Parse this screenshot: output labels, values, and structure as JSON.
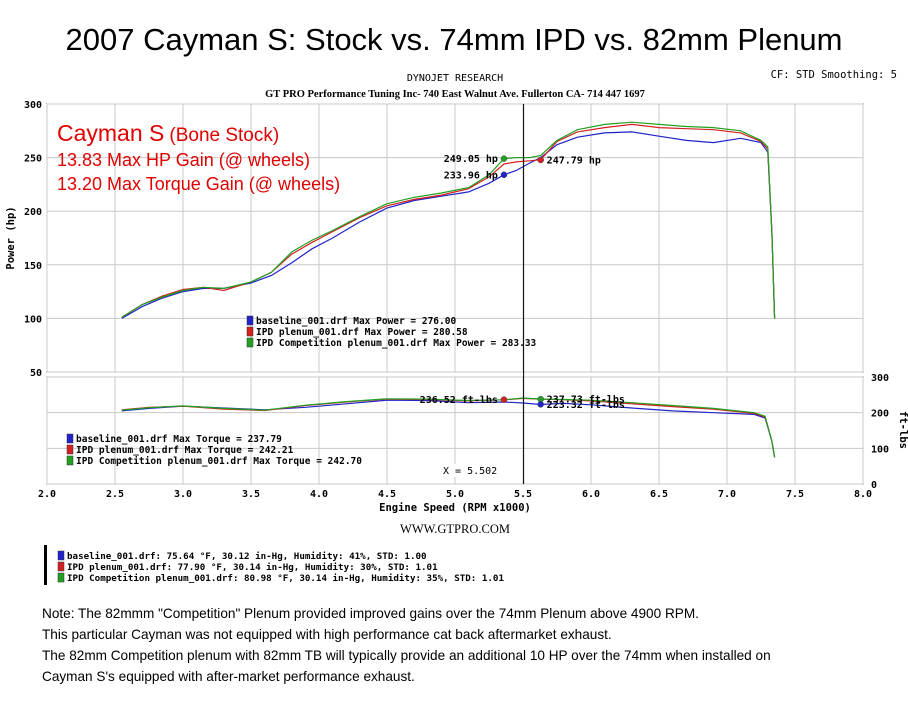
{
  "title": "2007 Cayman S: Stock vs. 74mm IPD vs. 82mm Plenum",
  "header": {
    "dyno": "DYNOJET RESEARCH",
    "shop": "GT PRO Performance Tuning Inc- 740 East Walnut Ave. Fullerton CA- 714 447 1697",
    "settings": "CF: STD  Smoothing: 5"
  },
  "annotations": {
    "line1_main": "Cayman S",
    "line1_sub": "(Bone Stock)",
    "line2": "13.83 Max HP Gain (@ wheels)",
    "line3": "13.20 Max Torque Gain (@ wheels)"
  },
  "colors": {
    "baseline": "#2222cc",
    "ipd": "#d42020",
    "competition": "#22a022",
    "annotation": "#e00000"
  },
  "power_legend": [
    "baseline_001.drf Max Power = 276.00",
    "IPD plenum_001.drf Max Power = 280.58",
    "IPD Competition plenum_001.drf Max Power = 283.33"
  ],
  "torque_legend": [
    "baseline_001.drf Max Torque = 237.79",
    "IPD plenum_001.drf Max Torque = 242.21",
    "IPD Competition plenum_001.drf Max Torque = 242.70"
  ],
  "cursor_label": "X = 5.502",
  "power_markers": [
    {
      "label": "249.05 hp",
      "x": 5.36,
      "y": 249.05,
      "series": "competition"
    },
    {
      "label": "233.96 hp",
      "x": 5.36,
      "y": 233.96,
      "series": "baseline"
    },
    {
      "label": "247.79 hp",
      "x": 5.63,
      "y": 247.79,
      "series": "ipd"
    }
  ],
  "torque_markers": [
    {
      "label": "236.52 ft-lbs",
      "x": 5.36,
      "y": 236.52,
      "series": "ipd"
    },
    {
      "label": "237.73 ft-lbs",
      "x": 5.63,
      "y": 237.73,
      "series": "competition"
    },
    {
      "label": "223.32 ft-lbs",
      "x": 5.63,
      "y": 223.32,
      "series": "baseline"
    }
  ],
  "website": "WWW.GTPRO.COM",
  "conditions": [
    "baseline_001.drf: 75.64 °F, 30.12 in-Hg, Humidity: 41%, STD: 1.00",
    "IPD plenum_001.drf: 77.90 °F, 30.14 in-Hg, Humidity: 30%, STD: 1.01",
    "IPD Competition plenum_001.drf: 80.98 °F, 30.14 in-Hg, Humidity: 35%, STD: 1.01"
  ],
  "notes": [
    "Note: The 82mmm \"Competition\" Plenum provided improved gains over the 74mm Plenum above 4900 RPM.",
    "This particular Cayman was not equipped with high performance cat back aftermarket exhaust.",
    "The 82mm Competition plenum with 82mm TB will typically provide an additional 10 HP over the 74mm when installed on",
    "Cayman S's equipped with after-market performance exhaust."
  ],
  "chart_data": [
    {
      "type": "line",
      "ylabel": "Power (hp)",
      "ylim": [
        50,
        300
      ],
      "xlim": [
        2.0,
        8.0
      ],
      "yticks": [
        "50",
        "100",
        "150",
        "200",
        "250",
        "300"
      ],
      "grid": true,
      "series": [
        {
          "name": "baseline_001.drf",
          "color_key": "baseline",
          "x": [
            2.55,
            2.7,
            2.85,
            3.0,
            3.15,
            3.3,
            3.5,
            3.65,
            3.8,
            3.95,
            4.1,
            4.3,
            4.5,
            4.7,
            4.9,
            5.1,
            5.25,
            5.36,
            5.45,
            5.55,
            5.63,
            5.75,
            5.9,
            6.1,
            6.3,
            6.5,
            6.7,
            6.9,
            7.1,
            7.25,
            7.3,
            7.33,
            7.35
          ],
          "y": [
            100,
            111,
            119,
            125,
            128,
            128,
            133,
            140,
            152,
            165,
            175,
            190,
            203,
            210,
            214,
            218,
            226,
            234,
            238,
            245,
            250,
            262,
            269,
            273,
            274,
            270,
            266,
            264,
            268,
            264,
            255,
            180,
            100
          ]
        },
        {
          "name": "IPD plenum_001.drf",
          "color_key": "ipd",
          "x": [
            2.55,
            2.7,
            2.85,
            3.0,
            3.15,
            3.3,
            3.5,
            3.65,
            3.8,
            3.95,
            4.1,
            4.3,
            4.5,
            4.7,
            4.9,
            5.1,
            5.25,
            5.36,
            5.45,
            5.55,
            5.63,
            5.75,
            5.9,
            6.1,
            6.3,
            6.5,
            6.7,
            6.9,
            7.1,
            7.25,
            7.3,
            7.33,
            7.35
          ],
          "y": [
            101,
            113,
            121,
            127,
            129,
            126,
            134,
            143,
            160,
            171,
            181,
            194,
            205,
            211,
            215,
            221,
            232,
            244,
            246,
            247,
            248,
            265,
            274,
            278,
            281,
            278,
            277,
            276,
            273,
            265,
            258,
            180,
            100
          ]
        },
        {
          "name": "IPD Competition plenum_001.drf",
          "color_key": "competition",
          "x": [
            2.55,
            2.7,
            2.85,
            3.0,
            3.15,
            3.3,
            3.5,
            3.65,
            3.8,
            3.95,
            4.1,
            4.3,
            4.5,
            4.7,
            4.9,
            5.1,
            5.25,
            5.36,
            5.45,
            5.55,
            5.63,
            5.75,
            5.9,
            6.1,
            6.3,
            6.5,
            6.7,
            6.9,
            7.1,
            7.25,
            7.3,
            7.33,
            7.35
          ],
          "y": [
            101,
            113,
            120,
            126,
            129,
            128,
            134,
            143,
            162,
            173,
            182,
            195,
            207,
            213,
            217,
            222,
            234,
            249,
            250,
            250,
            252,
            266,
            276,
            281,
            283,
            281,
            279,
            278,
            275,
            266,
            260,
            180,
            100
          ]
        }
      ]
    },
    {
      "type": "line",
      "xlabel": "Engine Speed (RPM x1000)",
      "ylabel": "ft-lbs",
      "ylim": [
        0,
        300
      ],
      "xlim": [
        2.0,
        8.0
      ],
      "xticks": [
        "2.0",
        "2.5",
        "3.0",
        "3.5",
        "4.0",
        "4.5",
        "5.0",
        "5.5",
        "6.0",
        "6.5",
        "7.0",
        "7.5",
        "8.0"
      ],
      "yticks": [
        "0",
        "100",
        "200",
        "300"
      ],
      "grid": true,
      "series": [
        {
          "name": "baseline_001.drf",
          "color_key": "baseline",
          "x": [
            2.55,
            2.75,
            3.0,
            3.3,
            3.6,
            3.9,
            4.2,
            4.5,
            4.8,
            5.1,
            5.36,
            5.5,
            5.63,
            5.8,
            6.0,
            6.3,
            6.6,
            6.9,
            7.2,
            7.28,
            7.33,
            7.35
          ],
          "y": [
            205,
            212,
            218,
            213,
            208,
            215,
            225,
            235,
            234,
            228,
            230,
            227,
            223,
            226,
            222,
            213,
            205,
            200,
            195,
            185,
            120,
            75
          ]
        },
        {
          "name": "IPD plenum_001.drf",
          "color_key": "ipd",
          "x": [
            2.55,
            2.75,
            3.0,
            3.3,
            3.6,
            3.9,
            4.2,
            4.5,
            4.8,
            5.1,
            5.36,
            5.5,
            5.63,
            5.8,
            6.0,
            6.3,
            6.6,
            6.9,
            7.2,
            7.28,
            7.33,
            7.35
          ],
          "y": [
            208,
            215,
            218,
            210,
            206,
            220,
            230,
            238,
            237,
            233,
            236,
            240,
            238,
            236,
            233,
            225,
            217,
            210,
            198,
            188,
            120,
            75
          ]
        },
        {
          "name": "IPD Competition plenum_001.drf",
          "color_key": "competition",
          "x": [
            2.55,
            2.75,
            3.0,
            3.3,
            3.6,
            3.9,
            4.2,
            4.5,
            4.8,
            5.1,
            5.36,
            5.5,
            5.63,
            5.8,
            6.0,
            6.3,
            6.6,
            6.9,
            7.2,
            7.28,
            7.33,
            7.35
          ],
          "y": [
            207,
            214,
            219,
            212,
            207,
            221,
            231,
            239,
            238,
            234,
            236,
            241,
            238,
            237,
            235,
            228,
            220,
            212,
            200,
            190,
            120,
            75
          ]
        }
      ]
    }
  ]
}
